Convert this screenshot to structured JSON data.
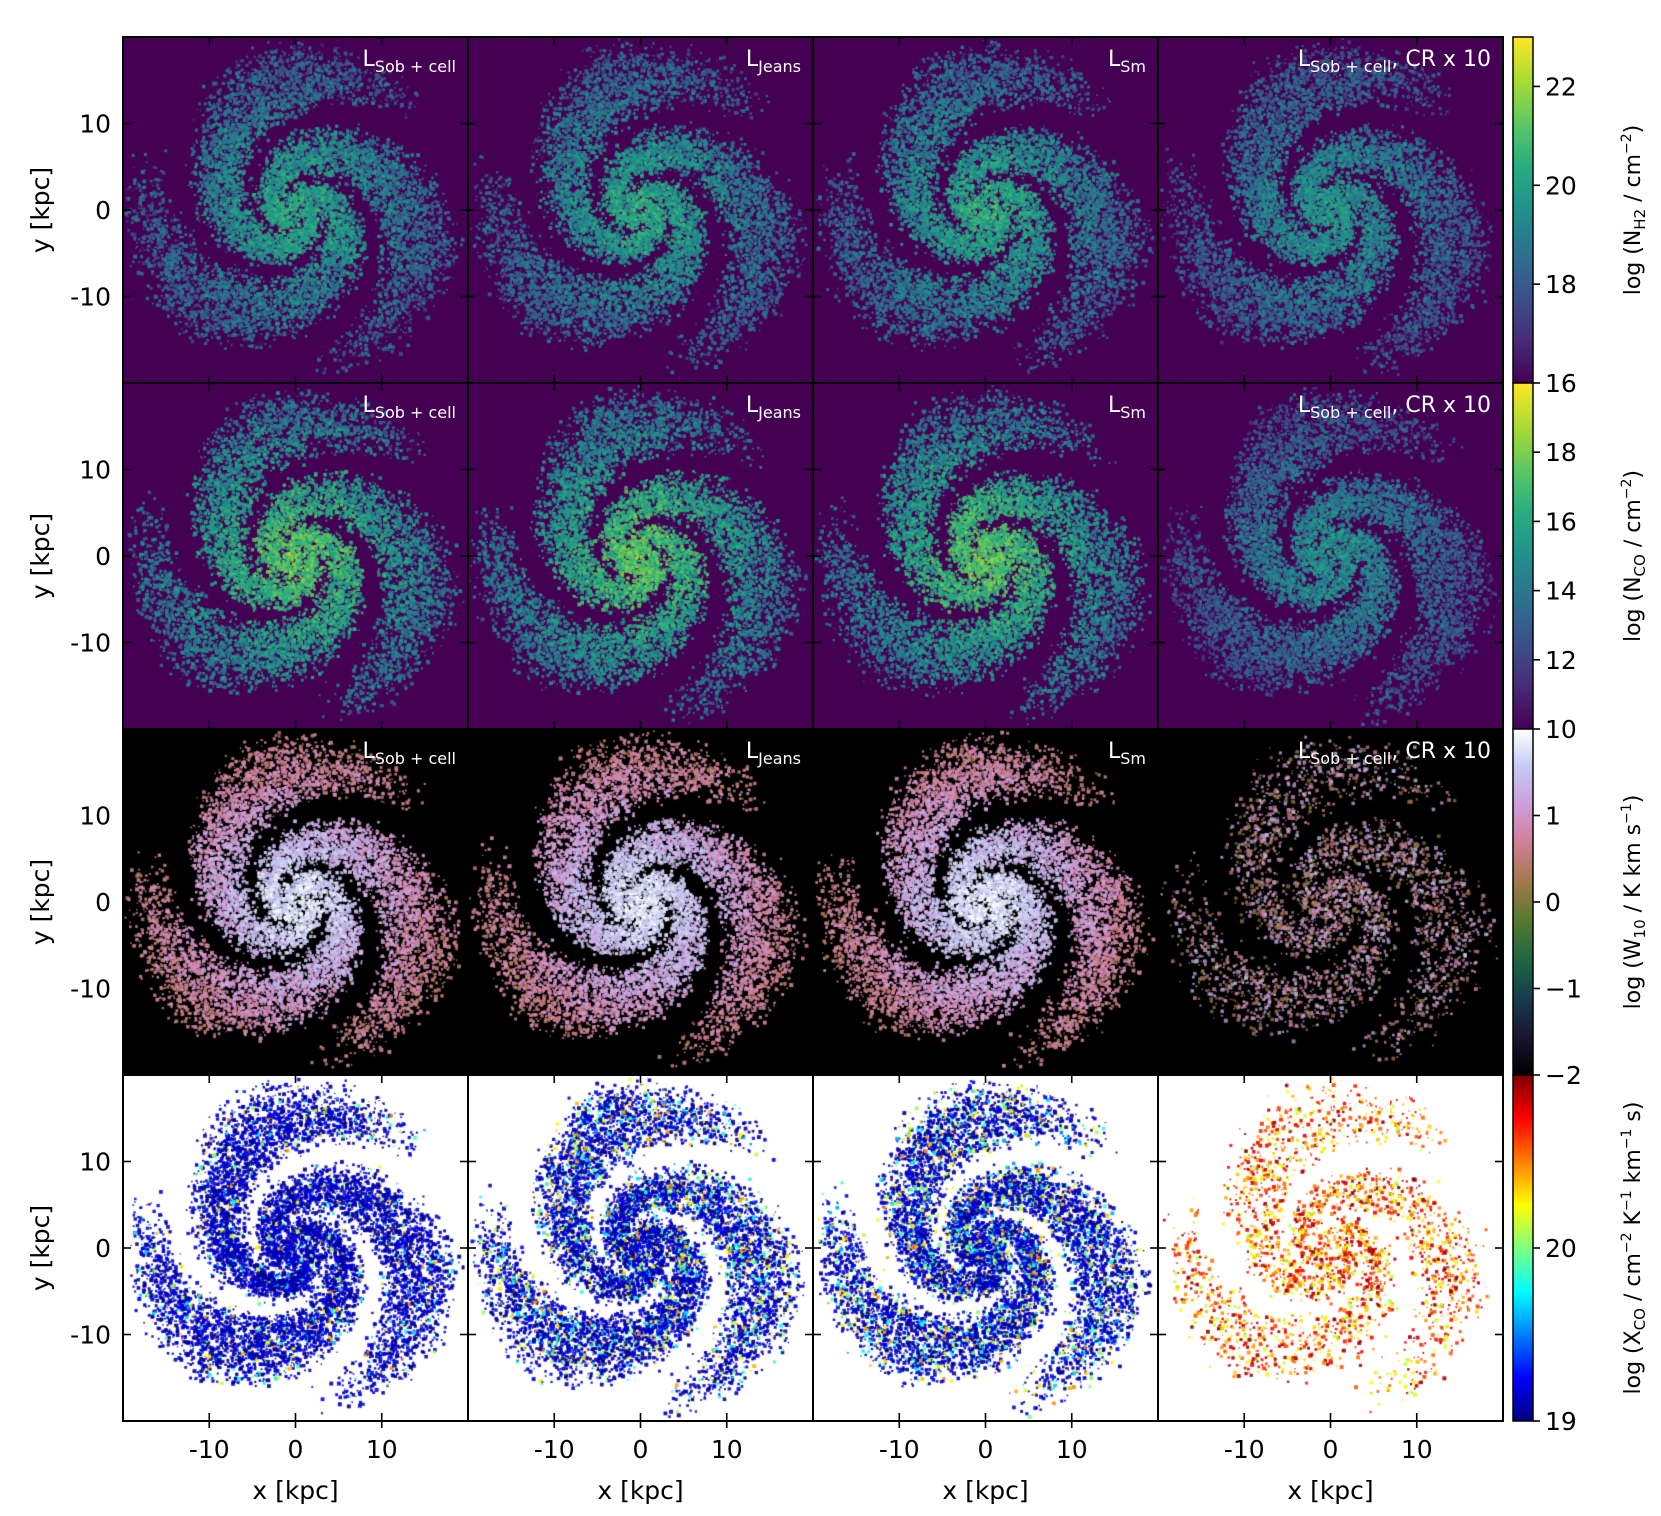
{
  "chart_data": {
    "type": "heatmap",
    "layout": {
      "rows": 4,
      "cols": 4
    },
    "x_axis": {
      "label": "x [kpc]",
      "ticks": [
        -10,
        0,
        10
      ],
      "range": [
        -20,
        20
      ]
    },
    "y_axis": {
      "label": "y [kpc]",
      "ticks": [
        10,
        0,
        -10
      ],
      "range": [
        -20,
        20
      ]
    },
    "columns": [
      {
        "label_main": "L",
        "label_sub": "Sob + cell",
        "label_suffix": ""
      },
      {
        "label_main": "L",
        "label_sub": "Jeans",
        "label_suffix": ""
      },
      {
        "label_main": "L",
        "label_sub": "Sm",
        "label_suffix": ""
      },
      {
        "label_main": "L",
        "label_sub": "Sob + cell",
        "label_suffix": ", CR x 10"
      }
    ],
    "rows": [
      {
        "quantity": "N_H2",
        "colormap": "viridis",
        "background": "#440154",
        "colorbar": {
          "label": {
            "pre": "log (N",
            "sub": "H2",
            "mid": " / cm",
            "sup": "−2",
            "post": ")"
          },
          "range": [
            16,
            23
          ],
          "ticks": [
            22,
            20,
            18,
            16
          ],
          "tick_labels": [
            "22",
            "20",
            "18",
            "16"
          ]
        },
        "panels": [
          {
            "intensity": 0.65
          },
          {
            "intensity": 0.66
          },
          {
            "intensity": 0.67
          },
          {
            "intensity": 0.58
          }
        ]
      },
      {
        "quantity": "N_CO",
        "colormap": "viridis",
        "background": "#440154",
        "colorbar": {
          "label": {
            "pre": "log (N",
            "sub": "CO",
            "mid": " / cm",
            "sup": "−2",
            "post": ")"
          },
          "range": [
            10,
            20
          ],
          "ticks": [
            18,
            16,
            14,
            12,
            10
          ],
          "tick_labels": [
            "18",
            "16",
            "14",
            "12",
            "10"
          ]
        },
        "panels": [
          {
            "intensity": 0.8
          },
          {
            "intensity": 0.8
          },
          {
            "intensity": 0.8
          },
          {
            "intensity": 0.55
          }
        ]
      },
      {
        "quantity": "W_10",
        "colormap": "cubehelix",
        "background": "#000000",
        "colorbar": {
          "label": {
            "pre": "log (W",
            "sub": "10",
            "mid": " / K km s",
            "sup": "−1",
            "post": ")"
          },
          "range": [
            -2,
            2
          ],
          "ticks": [
            1,
            0,
            -1,
            -2
          ],
          "tick_labels": [
            "1",
            "0",
            "−1",
            "−2"
          ]
        },
        "panels": [
          {
            "intensity": 0.85
          },
          {
            "intensity": 0.85
          },
          {
            "intensity": 0.85
          },
          {
            "intensity": 0.45
          }
        ]
      },
      {
        "quantity": "X_CO",
        "colormap": "jet",
        "background": "#ffffff",
        "colorbar": {
          "label": {
            "pre": "log (X",
            "sub": "CO",
            "mid": " / cm",
            "sup": "−2",
            "post": " K",
            "sup2": "−1",
            "post2": " km",
            "sup3": "−1",
            "post3": " s)"
          },
          "range": [
            19,
            21
          ],
          "ticks": [
            20,
            19
          ],
          "tick_labels": [
            "20",
            "19"
          ]
        },
        "panels": [
          {
            "intensity": 0.1
          },
          {
            "intensity": 0.22
          },
          {
            "intensity": 0.25
          },
          {
            "intensity": 0.85
          }
        ]
      }
    ]
  }
}
